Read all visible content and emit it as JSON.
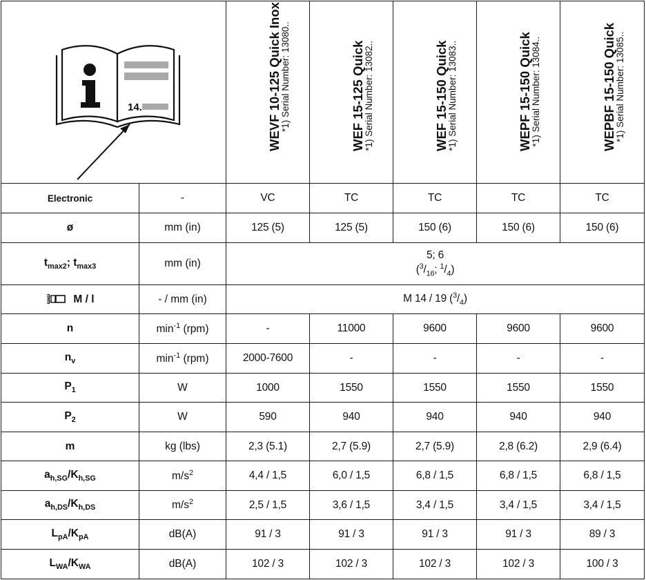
{
  "header": {
    "book_number": "14.",
    "models": [
      {
        "name": "WEVF 10-125 Quick Inox",
        "serial": "*1) Serial Number: 13080.."
      },
      {
        "name": "WEF 15-125 Quick",
        "serial": "*1) Serial Number: 13082.."
      },
      {
        "name": "WEF 15-150 Quick",
        "serial": "*1) Serial Number: 13083.."
      },
      {
        "name": "WEPF 15-150 Quick",
        "serial": "*1) Serial Number: 13084.."
      },
      {
        "name": "WEPBF 15-150 Quick",
        "serial": "*1) Serial Number: 13085.."
      }
    ]
  },
  "rows": {
    "electronic": {
      "label": "Electronic",
      "unit": "-",
      "values": [
        "VC",
        "TC",
        "TC",
        "TC",
        "TC"
      ]
    },
    "diameter": {
      "label": "ø",
      "unit": "mm (in)",
      "values": [
        "125 (5)",
        "125 (5)",
        "150 (6)",
        "150 (6)",
        "150 (6)"
      ]
    },
    "tmax": {
      "label_a": "t",
      "sub_a": "max2",
      "sep": "; ",
      "label_b": "t",
      "sub_b": "max3",
      "unit": "mm (in)",
      "value_line1": "5; 6",
      "v_open": "(",
      "v_sup1": "3",
      "v_sl1": "/",
      "v_sub1": "16",
      "v_mid": "; ",
      "v_sup2": "1",
      "v_sl2": "/",
      "v_sub2": "4",
      "v_close": ")"
    },
    "thread": {
      "label": "M / l",
      "unit": "- / mm (in)",
      "value_main": "M 14 / 19 (",
      "value_sup": "3",
      "value_slash": "/",
      "value_sub": "4",
      "value_close": ")"
    },
    "n": {
      "label": "n",
      "unit_a": "min",
      "unit_sup": "-1",
      "unit_b": " (rpm)",
      "values": [
        "-",
        "11000",
        "9600",
        "9600",
        "9600"
      ]
    },
    "nv": {
      "label": "n",
      "label_sub": "v",
      "unit_a": "min",
      "unit_sup": "-1",
      "unit_b": " (rpm)",
      "values": [
        "2000-7600",
        "-",
        "-",
        "-",
        "-"
      ]
    },
    "p1": {
      "label": "P",
      "label_sub": "1",
      "unit": "W",
      "values": [
        "1000",
        "1550",
        "1550",
        "1550",
        "1550"
      ]
    },
    "p2": {
      "label": "P",
      "label_sub": "2",
      "unit": "W",
      "values": [
        "590",
        "940",
        "940",
        "940",
        "940"
      ]
    },
    "m": {
      "label": "m",
      "unit": "kg (lbs)",
      "values": [
        "2,3 (5.1)",
        "2,7 (5.9)",
        "2,7 (5.9)",
        "2,8 (6.2)",
        "2,9 (6.4)"
      ]
    },
    "ahsg": {
      "a": "a",
      "a_sub": "h,SG",
      "slash": "/",
      "k": "K",
      "k_sub": "h,SG",
      "unit_a": "m/s",
      "unit_sup": "2",
      "values": [
        "4,4 / 1,5",
        "6,0 / 1,5",
        "6,8 / 1,5",
        "6,8 / 1,5",
        "6,8 / 1,5"
      ]
    },
    "ahds": {
      "a": "a",
      "a_sub": "h,DS",
      "slash": "/",
      "k": "K",
      "k_sub": "h,DS",
      "unit_a": "m/s",
      "unit_sup": "2",
      "values": [
        "2,5 / 1,5",
        "3,6 / 1,5",
        "3,4 / 1,5",
        "3,4 / 1,5",
        "3,4 / 1,5"
      ]
    },
    "lpa": {
      "a": "L",
      "a_sub": "pA",
      "slash": "/",
      "k": "K",
      "k_sub": "pA",
      "unit": "dB(A)",
      "values": [
        "91 / 3",
        "91 / 3",
        "91 / 3",
        "91 / 3",
        "89 / 3"
      ]
    },
    "lwa": {
      "a": "L",
      "a_sub": "WA",
      "slash": "/",
      "k": "K",
      "k_sub": "WA",
      "unit": "dB(A)",
      "values": [
        "102 / 3",
        "102 / 3",
        "102 / 3",
        "102 / 3",
        "100 / 3"
      ]
    }
  },
  "colors": {
    "border": "#1a1a1a",
    "book_gray": "#a9a9a9",
    "text": "#111111"
  }
}
